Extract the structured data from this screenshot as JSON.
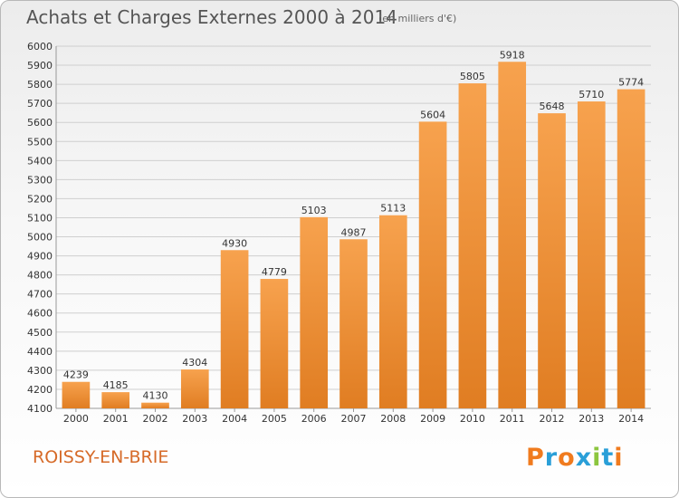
{
  "header": {
    "title": "Achats et Charges Externes 2000 à 2014",
    "unit": "(en milliers d'€)"
  },
  "footer": {
    "commune": "ROISSY-EN-BRIE",
    "logo_text": "Proxiti"
  },
  "colors": {
    "bar_light": "#f7a24e",
    "bar_dark": "#e07d22",
    "grid": "#cfcfcf",
    "axis_text": "#333333",
    "commune_text": "#d66a28",
    "logo_letters": [
      "#f07b1e",
      "#2a9fd8",
      "#f07b1e",
      "#2a9fd8",
      "#8cc63f",
      "#2a9fd8",
      "#f07b1e"
    ]
  },
  "chart_data": {
    "type": "bar",
    "title": "Achats et Charges Externes 2000 à 2014",
    "subtitle": "(en milliers d'€)",
    "xlabel": "",
    "ylabel": "",
    "categories": [
      "2000",
      "2001",
      "2002",
      "2003",
      "2004",
      "2005",
      "2006",
      "2007",
      "2008",
      "2009",
      "2010",
      "2011",
      "2012",
      "2013",
      "2014"
    ],
    "values": [
      4239,
      4185,
      4130,
      4304,
      4930,
      4779,
      5103,
      4987,
      5113,
      5604,
      5805,
      5918,
      5648,
      5710,
      5774
    ],
    "ylim": [
      4100,
      6000
    ],
    "yticks": [
      4100,
      4200,
      4300,
      4400,
      4500,
      4600,
      4700,
      4800,
      4900,
      5000,
      5100,
      5200,
      5300,
      5400,
      5500,
      5600,
      5700,
      5800,
      5900,
      6000
    ],
    "grid": true,
    "data_labels": true,
    "legend": "none"
  }
}
